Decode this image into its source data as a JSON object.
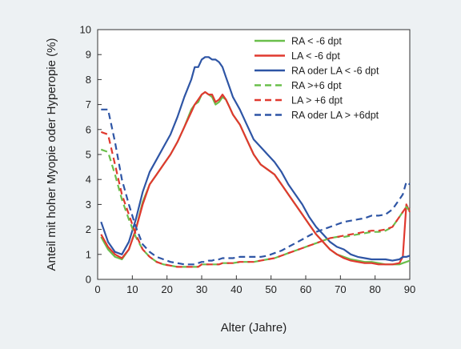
{
  "chart_data": {
    "type": "line",
    "xlabel": "Alter (Jahre)",
    "ylabel": "Anteil mit hoher Myopie oder Hyperopie (%)",
    "xlim": [
      0,
      90
    ],
    "ylim": [
      0,
      10
    ],
    "xticks": [
      "0",
      "10",
      "20",
      "30",
      "40",
      "50",
      "60",
      "70",
      "80",
      "90"
    ],
    "yticks": [
      "0",
      "1",
      "2",
      "3",
      "4",
      "5",
      "6",
      "7",
      "8",
      "9",
      "10"
    ],
    "grid": false,
    "legend_position": "top-right",
    "x": [
      1,
      3,
      5,
      7,
      9,
      11,
      13,
      15,
      17,
      19,
      21,
      23,
      25,
      27,
      28,
      29,
      30,
      31,
      32,
      33,
      34,
      35,
      36,
      37,
      38,
      39,
      41,
      43,
      45,
      47,
      49,
      51,
      53,
      55,
      57,
      59,
      61,
      63,
      65,
      67,
      69,
      71,
      73,
      75,
      77,
      79,
      81,
      83,
      85,
      87,
      88,
      89,
      90
    ],
    "series": [
      {
        "name": "RA < -6 dpt",
        "color": "#6abf4b",
        "dash": false,
        "values": [
          1.7,
          1.2,
          0.9,
          0.8,
          1.2,
          2.0,
          3.1,
          3.8,
          4.2,
          4.6,
          5.0,
          5.5,
          6.1,
          6.8,
          7.0,
          7.1,
          7.4,
          7.5,
          7.4,
          7.3,
          7.0,
          7.1,
          7.3,
          7.2,
          6.9,
          6.6,
          6.2,
          5.6,
          5.0,
          4.6,
          4.4,
          4.2,
          3.8,
          3.4,
          3.0,
          2.6,
          2.2,
          1.8,
          1.5,
          1.2,
          1.0,
          0.9,
          0.8,
          0.75,
          0.7,
          0.7,
          0.65,
          0.6,
          0.6,
          0.6,
          0.65,
          0.7,
          0.75
        ]
      },
      {
        "name": "LA < -6 dpt",
        "color": "#e0392f",
        "dash": false,
        "values": [
          1.8,
          1.3,
          1.0,
          0.85,
          1.2,
          2.0,
          3.0,
          3.8,
          4.2,
          4.6,
          5.0,
          5.5,
          6.1,
          6.7,
          7.0,
          7.2,
          7.4,
          7.5,
          7.4,
          7.4,
          7.1,
          7.2,
          7.4,
          7.2,
          6.9,
          6.6,
          6.2,
          5.6,
          5.0,
          4.6,
          4.4,
          4.2,
          3.8,
          3.4,
          3.0,
          2.6,
          2.2,
          1.8,
          1.5,
          1.2,
          1.0,
          0.85,
          0.75,
          0.7,
          0.65,
          0.65,
          0.6,
          0.6,
          0.6,
          0.65,
          0.9,
          3.0,
          2.7
        ]
      },
      {
        "name": "RA oder LA < -6 dpt",
        "color": "#2e55a5",
        "dash": false,
        "values": [
          2.3,
          1.5,
          1.1,
          1.0,
          1.5,
          2.4,
          3.5,
          4.3,
          4.8,
          5.3,
          5.8,
          6.5,
          7.3,
          8.0,
          8.5,
          8.5,
          8.8,
          8.9,
          8.9,
          8.8,
          8.8,
          8.7,
          8.5,
          8.1,
          7.7,
          7.3,
          6.8,
          6.2,
          5.6,
          5.3,
          5.0,
          4.7,
          4.3,
          3.8,
          3.4,
          3.0,
          2.5,
          2.1,
          1.8,
          1.5,
          1.3,
          1.2,
          1.0,
          0.9,
          0.85,
          0.8,
          0.8,
          0.8,
          0.75,
          0.8,
          0.9,
          0.9,
          0.95
        ]
      },
      {
        "name": "RA >+6 dpt",
        "color": "#6abf4b",
        "dash": true,
        "values": [
          5.2,
          5.1,
          4.2,
          3.2,
          2.4,
          1.7,
          1.2,
          0.9,
          0.7,
          0.6,
          0.55,
          0.5,
          0.5,
          0.5,
          0.5,
          0.5,
          0.6,
          0.6,
          0.6,
          0.6,
          0.6,
          0.6,
          0.65,
          0.65,
          0.65,
          0.65,
          0.7,
          0.7,
          0.7,
          0.75,
          0.8,
          0.85,
          0.95,
          1.05,
          1.15,
          1.25,
          1.35,
          1.45,
          1.55,
          1.65,
          1.7,
          1.7,
          1.75,
          1.8,
          1.85,
          1.9,
          1.9,
          1.95,
          2.1,
          2.5,
          2.7,
          2.9,
          2.75
        ]
      },
      {
        "name": "LA > +6 dpt",
        "color": "#e0392f",
        "dash": true,
        "values": [
          5.9,
          5.8,
          4.6,
          3.4,
          2.6,
          1.8,
          1.2,
          0.9,
          0.7,
          0.6,
          0.55,
          0.5,
          0.5,
          0.5,
          0.5,
          0.5,
          0.6,
          0.6,
          0.6,
          0.6,
          0.6,
          0.6,
          0.65,
          0.65,
          0.65,
          0.65,
          0.7,
          0.7,
          0.7,
          0.75,
          0.8,
          0.85,
          0.95,
          1.05,
          1.15,
          1.25,
          1.35,
          1.45,
          1.55,
          1.65,
          1.7,
          1.75,
          1.8,
          1.85,
          1.9,
          1.95,
          1.95,
          2.0,
          2.1,
          2.5,
          2.7,
          2.9,
          2.8
        ]
      },
      {
        "name": "RA oder LA > +6dpt",
        "color": "#2e55a5",
        "dash": true,
        "values": [
          6.8,
          6.8,
          5.5,
          4.0,
          3.0,
          2.1,
          1.4,
          1.1,
          0.9,
          0.8,
          0.7,
          0.65,
          0.6,
          0.6,
          0.6,
          0.65,
          0.7,
          0.7,
          0.75,
          0.75,
          0.8,
          0.8,
          0.85,
          0.85,
          0.85,
          0.85,
          0.9,
          0.9,
          0.9,
          0.9,
          0.95,
          1.05,
          1.15,
          1.3,
          1.45,
          1.6,
          1.75,
          1.9,
          2.0,
          2.1,
          2.2,
          2.3,
          2.35,
          2.4,
          2.45,
          2.55,
          2.55,
          2.6,
          2.8,
          3.2,
          3.4,
          3.9,
          3.8
        ]
      }
    ]
  }
}
